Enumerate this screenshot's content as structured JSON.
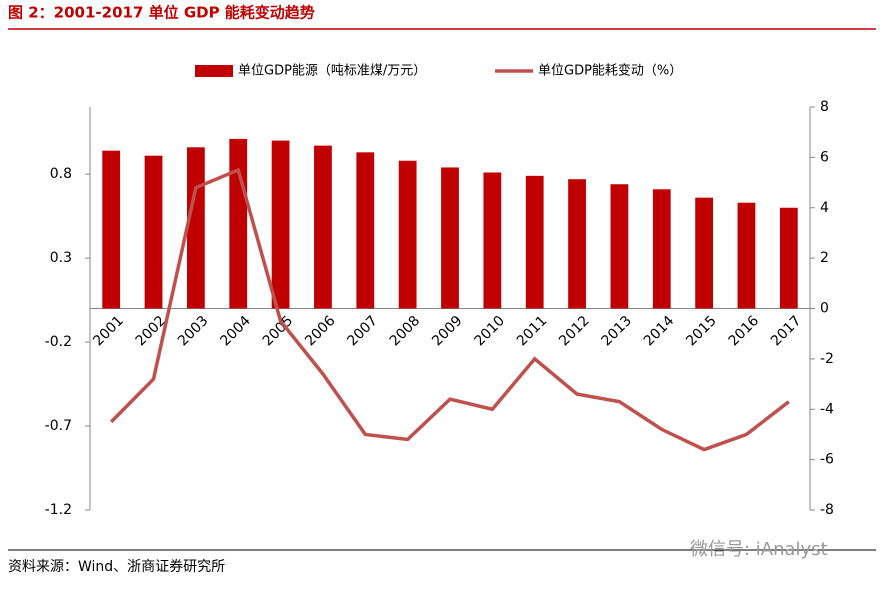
{
  "title": "图 2：2001-2017 单位 GDP 能耗变动趋势",
  "source": "资料来源：Wind、浙商证券研究所",
  "watermark": "微信号: iAnalyst",
  "chart_data": {
    "type": "bar",
    "categories": [
      "2001",
      "2002",
      "2003",
      "2004",
      "2005",
      "2006",
      "2007",
      "2008",
      "2009",
      "2010",
      "2011",
      "2012",
      "2013",
      "2014",
      "2015",
      "2016",
      "2017"
    ],
    "series": [
      {
        "name": "单位GDP能源（吨标准煤/万元）",
        "type": "bar",
        "color": "#c00000",
        "values": [
          0.94,
          0.91,
          0.96,
          1.01,
          1.0,
          0.97,
          0.93,
          0.88,
          0.84,
          0.81,
          0.79,
          0.77,
          0.74,
          0.71,
          0.66,
          0.63,
          0.6
        ]
      },
      {
        "name": "单位GDP能耗变动（%）",
        "type": "line",
        "axis": "y2",
        "color": "#c0504d",
        "values": [
          -4.5,
          -2.8,
          4.8,
          5.5,
          -0.5,
          -2.6,
          -5.0,
          -5.2,
          -3.6,
          -4.0,
          -2.0,
          -3.4,
          -3.7,
          -4.8,
          -5.6,
          -5.0,
          -3.7
        ]
      }
    ],
    "ylim": [
      -1.2,
      1.2
    ],
    "yticks": [
      -1.2,
      -0.7,
      -0.2,
      0.3,
      0.8
    ],
    "y2lim": [
      -8,
      8
    ],
    "y2ticks": [
      -8,
      -6,
      -4,
      -2,
      0,
      2,
      4,
      6,
      8
    ],
    "legend": "top"
  }
}
